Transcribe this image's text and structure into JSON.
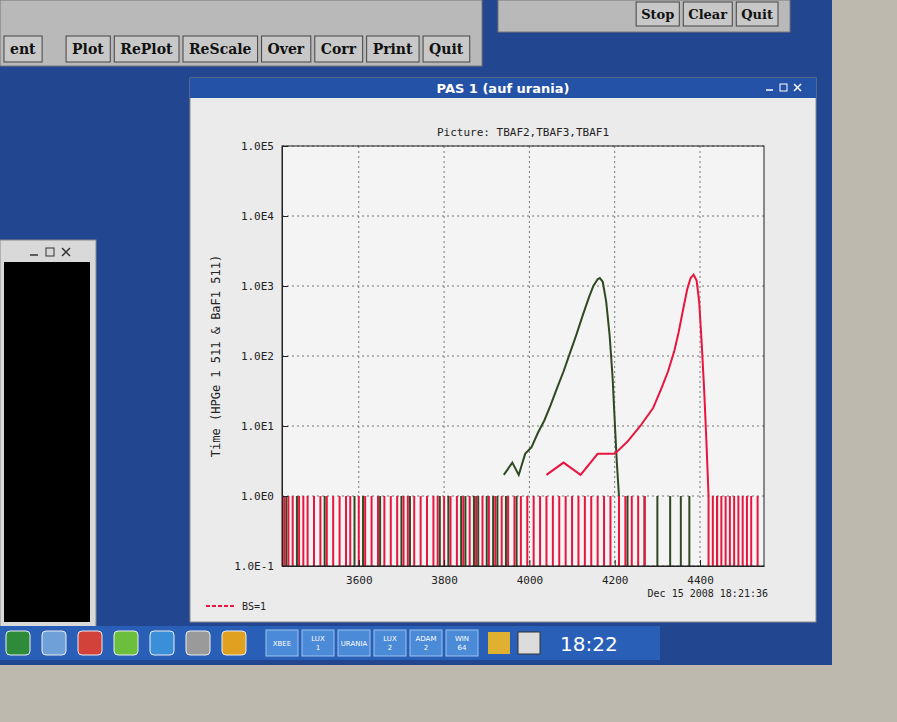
{
  "chart_data": {
    "type": "line",
    "title": "Picture: TBAF2,TBAF3,TBAF1",
    "y_label": "Time (HPGe 1 511 & BaF1 511)",
    "annotation": "Dec 15 2008 18:21:36",
    "log": "y",
    "grid": true,
    "legend": "bottom-left",
    "xlim": [
      3420,
      4550
    ],
    "xticks": [
      3600,
      3800,
      4000,
      4200,
      4400
    ],
    "ylim": [
      0.1,
      100000
    ],
    "yticks": [
      {
        "value": 0.1,
        "label": "1.0E-1"
      },
      {
        "value": 1,
        "label": "1.0E0"
      },
      {
        "value": 10,
        "label": "1.0E1"
      },
      {
        "value": 100,
        "label": "1.0E2"
      },
      {
        "value": 1000,
        "label": "1.0E3"
      },
      {
        "value": 10000,
        "label": "1.0E4"
      },
      {
        "value": 100000,
        "label": "1.0E5"
      }
    ],
    "series": [
      {
        "type": "spike",
        "color": "#2f4a22",
        "x": [
          3430,
          3455,
          3520,
          3590,
          3610,
          3650,
          3700,
          3720,
          3760,
          3790,
          3810,
          3840,
          3850,
          3870,
          3880,
          3900,
          3915,
          3925,
          3945,
          3970,
          4230,
          4270,
          4300,
          4330,
          4355,
          4375,
          4440
        ],
        "values": [
          1,
          1,
          1,
          1,
          1,
          1,
          1,
          1,
          1,
          1,
          1,
          1,
          1,
          1,
          1,
          1,
          1,
          1,
          1,
          1,
          1,
          1,
          1,
          1,
          1,
          1,
          1
        ]
      },
      {
        "type": "spike",
        "color": "#e8163f",
        "x": [
          3425,
          3435,
          3445,
          3460,
          3470,
          3480,
          3495,
          3510,
          3525,
          3540,
          3555,
          3570,
          3580,
          3600,
          3615,
          3630,
          3645,
          3660,
          3675,
          3690,
          3705,
          3715,
          3730,
          3745,
          3760,
          3775,
          3785,
          3800,
          3815,
          3830,
          3845,
          3860,
          3875,
          3890,
          3905,
          3920,
          3935,
          3950,
          3965,
          3980,
          3995,
          4010,
          4025,
          4040,
          4055,
          4070,
          4085,
          4100,
          4115,
          4130,
          4145,
          4160,
          4175,
          4190,
          4210,
          4225,
          4240,
          4255,
          4270,
          4420,
          4430,
          4440,
          4450,
          4460,
          4470,
          4480,
          4490,
          4500,
          4510,
          4520,
          4535
        ],
        "values": [
          1,
          1,
          1,
          1,
          1,
          1,
          1,
          1,
          1,
          1,
          1,
          1,
          1,
          1,
          1,
          1,
          1,
          1,
          1,
          1,
          1,
          1,
          1,
          1,
          1,
          1,
          1,
          1,
          1,
          1,
          1,
          1,
          1,
          1,
          1,
          1,
          1,
          1,
          1,
          1,
          1,
          1,
          1,
          1,
          1,
          1,
          1,
          1,
          1,
          1,
          1,
          1,
          1,
          1,
          1,
          1,
          1,
          1,
          1,
          1,
          1,
          1,
          1,
          1,
          1,
          1,
          1,
          1,
          1,
          1,
          1
        ]
      },
      {
        "type": "line",
        "color": "#2f4a22",
        "x": [
          3940,
          3960,
          3975,
          3990,
          4005,
          4020,
          4035,
          4050,
          4065,
          4080,
          4095,
          4110,
          4125,
          4140,
          4150,
          4160,
          4165,
          4172,
          4180,
          4188,
          4195,
          4200,
          4205,
          4210
        ],
        "values": [
          2,
          3,
          2,
          4,
          5,
          8,
          12,
          20,
          35,
          60,
          110,
          200,
          380,
          700,
          1000,
          1250,
          1300,
          1150,
          600,
          200,
          50,
          12,
          3,
          1
        ]
      },
      {
        "type": "line",
        "color": "#e8163f",
        "name": "BS=1",
        "x": [
          4040,
          4080,
          4120,
          4160,
          4200,
          4230,
          4260,
          4290,
          4310,
          4325,
          4340,
          4350,
          4360,
          4370,
          4378,
          4385,
          4392,
          4398,
          4404,
          4410,
          4415,
          4420
        ],
        "values": [
          2,
          3,
          2,
          4,
          4,
          6,
          10,
          18,
          35,
          60,
          120,
          220,
          450,
          900,
          1300,
          1450,
          1200,
          600,
          150,
          30,
          6,
          1
        ]
      }
    ]
  },
  "toolbar": {
    "buttons": [
      "ent",
      "Plot",
      "RePlot",
      "ReScale",
      "Over",
      "Corr",
      "Print",
      "Quit"
    ]
  },
  "toolbar2": {
    "buttons": [
      "Stop",
      "Clear",
      "Quit"
    ]
  },
  "window": {
    "title": "PAS 1 (auf urania)"
  },
  "taskbar": {
    "items": [
      "XBEE",
      "LUX 1",
      "URANIA",
      "LUX 2",
      "ADAM 2",
      "WIN 64"
    ],
    "clock": "18:22"
  }
}
